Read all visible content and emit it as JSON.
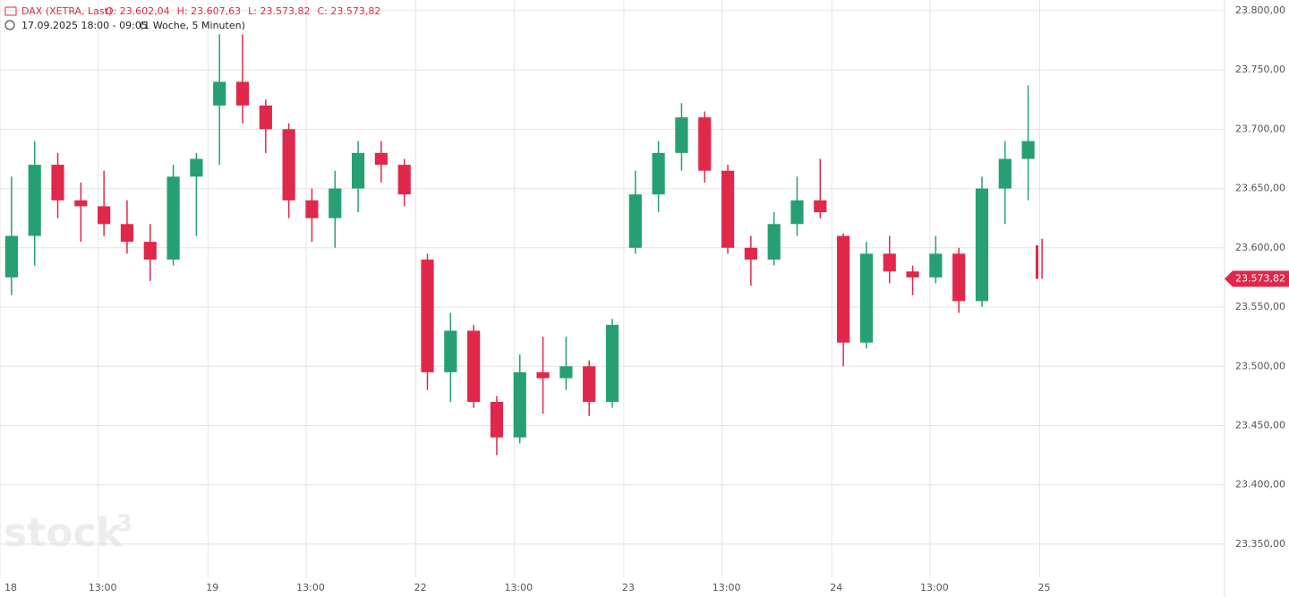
{
  "chart_data": {
    "type": "candlestick",
    "instrument": "DAX (XETRA, Last)",
    "ohlc_labels": [
      "O: 23.602,04",
      "H: 23.607,63",
      "L: 23.573,82",
      "C: 23.573,82"
    ],
    "period": "17.09.2025 18:00 - 09:05",
    "interval": "(1 Woche, 5 Minuten)",
    "watermark": "stock",
    "watermark_sup": "3",
    "up_color": "#26a072",
    "down_color": "#e0284a",
    "grid": true,
    "xlim": [
      0,
      53
    ],
    "ylim": [
      23322,
      23809
    ],
    "xticks": [
      {
        "value": 0,
        "label": "18"
      },
      {
        "value": 4.25,
        "label": "13:00"
      },
      {
        "value": 9,
        "label": "19"
      },
      {
        "value": 13.25,
        "label": "13:00"
      },
      {
        "value": 18,
        "label": "22"
      },
      {
        "value": 22.25,
        "label": "13:00"
      },
      {
        "value": 27,
        "label": "23"
      },
      {
        "value": 31.25,
        "label": "13:00"
      },
      {
        "value": 36,
        "label": "24"
      },
      {
        "value": 40.25,
        "label": "13:00"
      },
      {
        "value": 45,
        "label": "25"
      }
    ],
    "yticks": [
      {
        "value": 23350,
        "label": "23.350,00"
      },
      {
        "value": 23400,
        "label": "23.400,00"
      },
      {
        "value": 23450,
        "label": "23.450,00"
      },
      {
        "value": 23500,
        "label": "23.500,00"
      },
      {
        "value": 23550,
        "label": "23.550,00"
      },
      {
        "value": 23600,
        "label": "23.600,00"
      },
      {
        "value": 23650,
        "label": "23.650,00"
      },
      {
        "value": 23700,
        "label": "23.700,00"
      },
      {
        "value": 23750,
        "label": "23.750,00"
      },
      {
        "value": 23800,
        "label": "23.800,00"
      }
    ],
    "last": {
      "value": 23573.82,
      "label": "23.573,82"
    },
    "x": [
      0.5,
      1.5,
      2.5,
      3.5,
      4.5,
      5.5,
      6.5,
      7.5,
      8.5,
      9.5,
      10.5,
      11.5,
      12.5,
      13.5,
      14.5,
      15.5,
      16.5,
      17.5,
      18.5,
      19.5,
      20.5,
      21.5,
      22.5,
      23.5,
      24.5,
      25.5,
      26.5,
      27.5,
      28.5,
      29.5,
      30.5,
      31.5,
      32.5,
      33.5,
      34.5,
      35.5,
      36.5,
      37.5,
      38.5,
      39.5,
      40.5,
      41.5,
      42.5,
      43.5,
      44.5,
      45.1
    ],
    "open": [
      23575,
      23610,
      23670,
      23640,
      23635,
      23620,
      23605,
      23590,
      23660,
      23720,
      23740,
      23720,
      23700,
      23640,
      23625,
      23650,
      23680,
      23670,
      23590,
      23495,
      23530,
      23470,
      23440,
      23495,
      23490,
      23500,
      23470,
      23600,
      23645,
      23680,
      23710,
      23665,
      23600,
      23590,
      23620,
      23640,
      23610,
      23520,
      23595,
      23580,
      23575,
      23595,
      23555,
      23650,
      23675,
      23602.04
    ],
    "high": [
      23660,
      23690,
      23680,
      23655,
      23665,
      23640,
      23620,
      23670,
      23680,
      23780,
      23780,
      23725,
      23705,
      23650,
      23665,
      23690,
      23690,
      23675,
      23595,
      23545,
      23535,
      23475,
      23510,
      23525,
      23525,
      23505,
      23540,
      23665,
      23690,
      23722,
      23715,
      23670,
      23610,
      23630,
      23660,
      23675,
      23612,
      23605,
      23610,
      23585,
      23610,
      23600,
      23660,
      23690,
      23737,
      23607.63
    ],
    "low": [
      23560,
      23585,
      23625,
      23605,
      23610,
      23595,
      23572,
      23585,
      23610,
      23670,
      23705,
      23680,
      23625,
      23605,
      23600,
      23630,
      23655,
      23635,
      23480,
      23470,
      23465,
      23425,
      23435,
      23460,
      23480,
      23458,
      23465,
      23595,
      23630,
      23665,
      23655,
      23595,
      23568,
      23585,
      23610,
      23625,
      23500,
      23515,
      23570,
      23560,
      23570,
      23545,
      23550,
      23620,
      23640,
      23573.82
    ],
    "close": [
      23610,
      23670,
      23640,
      23635,
      23620,
      23605,
      23590,
      23660,
      23675,
      23740,
      23720,
      23700,
      23640,
      23625,
      23650,
      23680,
      23670,
      23645,
      23495,
      23530,
      23470,
      23440,
      23495,
      23490,
      23500,
      23470,
      23535,
      23645,
      23680,
      23710,
      23665,
      23600,
      23590,
      23620,
      23640,
      23630,
      23520,
      23595,
      23580,
      23575,
      23595,
      23555,
      23650,
      23675,
      23690,
      23573.82
    ]
  }
}
